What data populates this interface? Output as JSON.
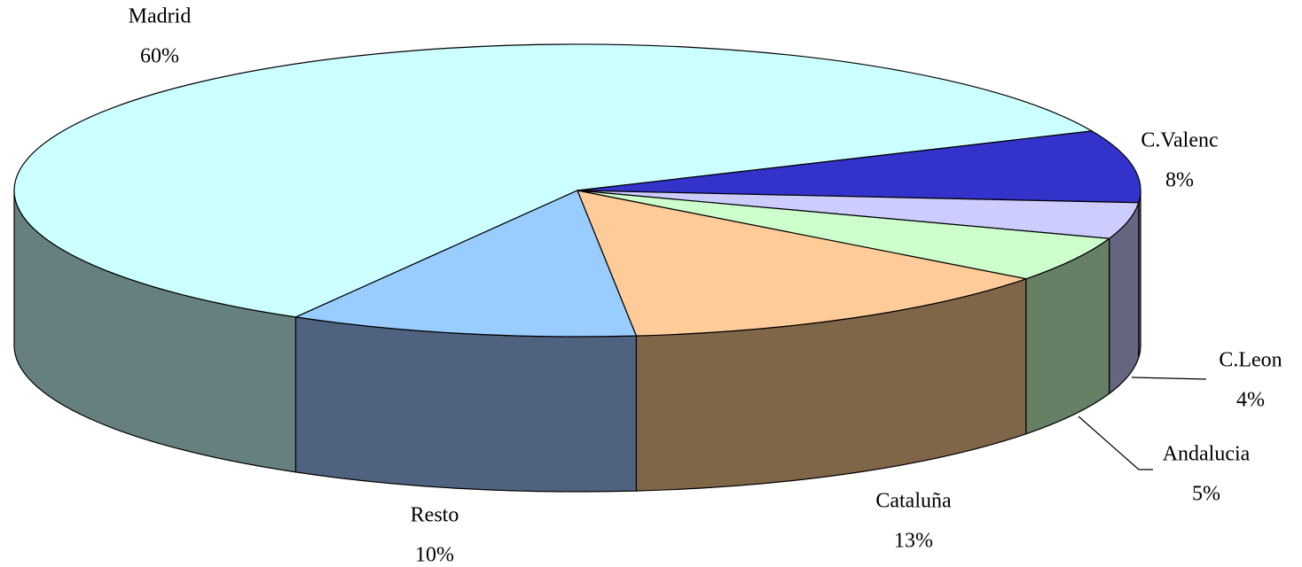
{
  "chart_data": {
    "type": "pie3d",
    "categories": [
      "Madrid",
      "C.Valenc",
      "C.Leon",
      "Andalucia",
      "Cataluña",
      "Resto"
    ],
    "values": [
      60,
      8,
      4,
      5,
      13,
      10
    ],
    "value_labels": [
      "60%",
      "8%",
      "4%",
      "5%",
      "13%",
      "10%"
    ],
    "colors": [
      "#ccffff",
      "#3333cc",
      "#ccccff",
      "#ccffcc",
      "#ffcc99",
      "#99ccff"
    ],
    "side_colors": [
      "#668080",
      "#666680",
      "#666680",
      "#668066",
      "#806649",
      "#4f6380"
    ]
  }
}
